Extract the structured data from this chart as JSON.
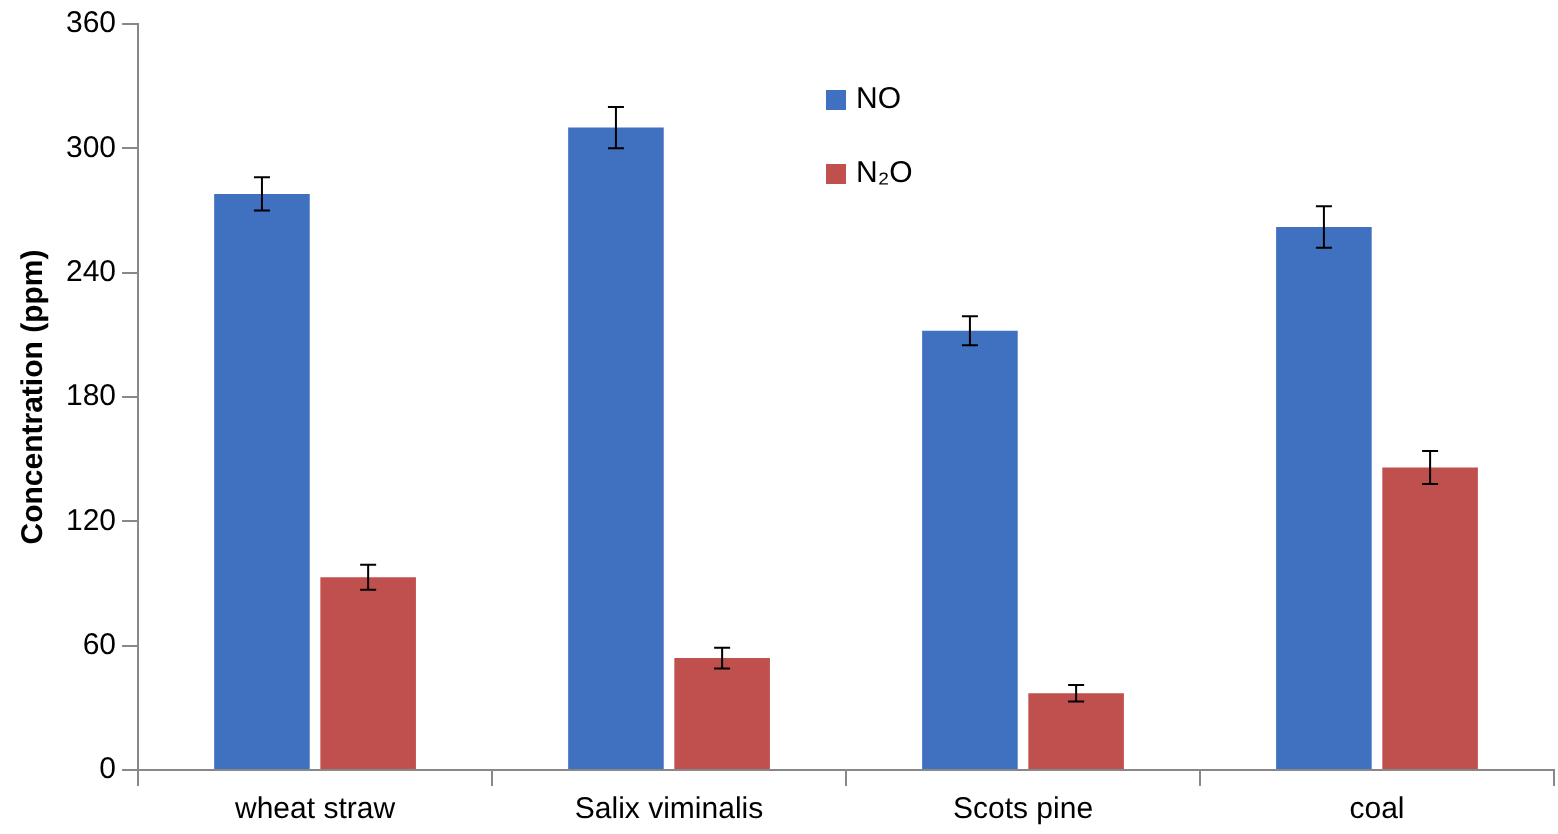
{
  "chart_data": {
    "type": "bar",
    "ylabel": "Concentration (ppm)",
    "categories": [
      "wheat straw",
      "Salix viminalis",
      "Scots pine",
      "coal"
    ],
    "series": [
      {
        "name": "NO",
        "color": "#4070c0",
        "values": [
          278,
          310,
          212,
          262
        ],
        "errors": [
          8,
          10,
          7,
          10
        ]
      },
      {
        "name": "N₂O",
        "color": "#c0504d",
        "values": [
          93,
          54,
          37,
          146
        ],
        "errors": [
          6,
          5,
          4,
          8
        ]
      }
    ],
    "ylim": [
      0,
      360
    ],
    "yticks": [
      0,
      60,
      120,
      180,
      240,
      300,
      360
    ],
    "grid": false,
    "legend": "top"
  }
}
